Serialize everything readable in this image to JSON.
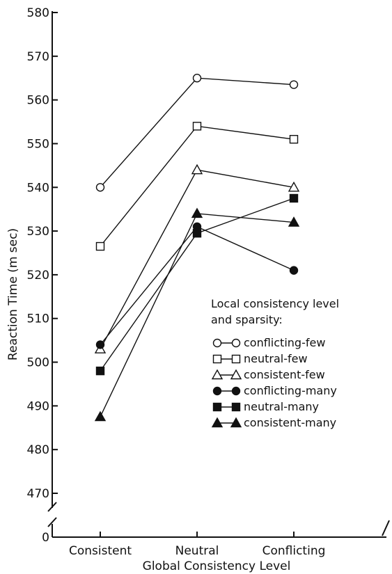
{
  "chart_data": {
    "type": "line",
    "xlabel": "Global Consistency Level",
    "ylabel": "Reaction Time (m sec)",
    "categories": [
      "Consistent",
      "Neutral",
      "Conflicting"
    ],
    "ylim": [
      470,
      580
    ],
    "yticks": [
      470,
      480,
      490,
      500,
      510,
      520,
      530,
      540,
      550,
      560,
      570,
      580
    ],
    "y_axis_break": true,
    "y_origin_label": "0",
    "legend_title_lines": [
      "Local consistency level",
      "and sparsity:"
    ],
    "legend_position": "middle-right",
    "series": [
      {
        "name": "conflicting-few",
        "marker": "circle-open",
        "values": [
          540,
          565,
          563.5
        ]
      },
      {
        "name": "neutral-few",
        "marker": "square-open",
        "values": [
          526.5,
          554,
          551
        ]
      },
      {
        "name": "consistent-few",
        "marker": "triangle-open",
        "values": [
          503,
          544,
          540
        ]
      },
      {
        "name": "conflicting-many",
        "marker": "circle-filled",
        "values": [
          504,
          531,
          521
        ]
      },
      {
        "name": "neutral-many",
        "marker": "square-filled",
        "values": [
          498,
          529.5,
          537.5
        ]
      },
      {
        "name": "consistent-many",
        "marker": "triangle-filled",
        "values": [
          487.5,
          534,
          532
        ]
      }
    ]
  }
}
